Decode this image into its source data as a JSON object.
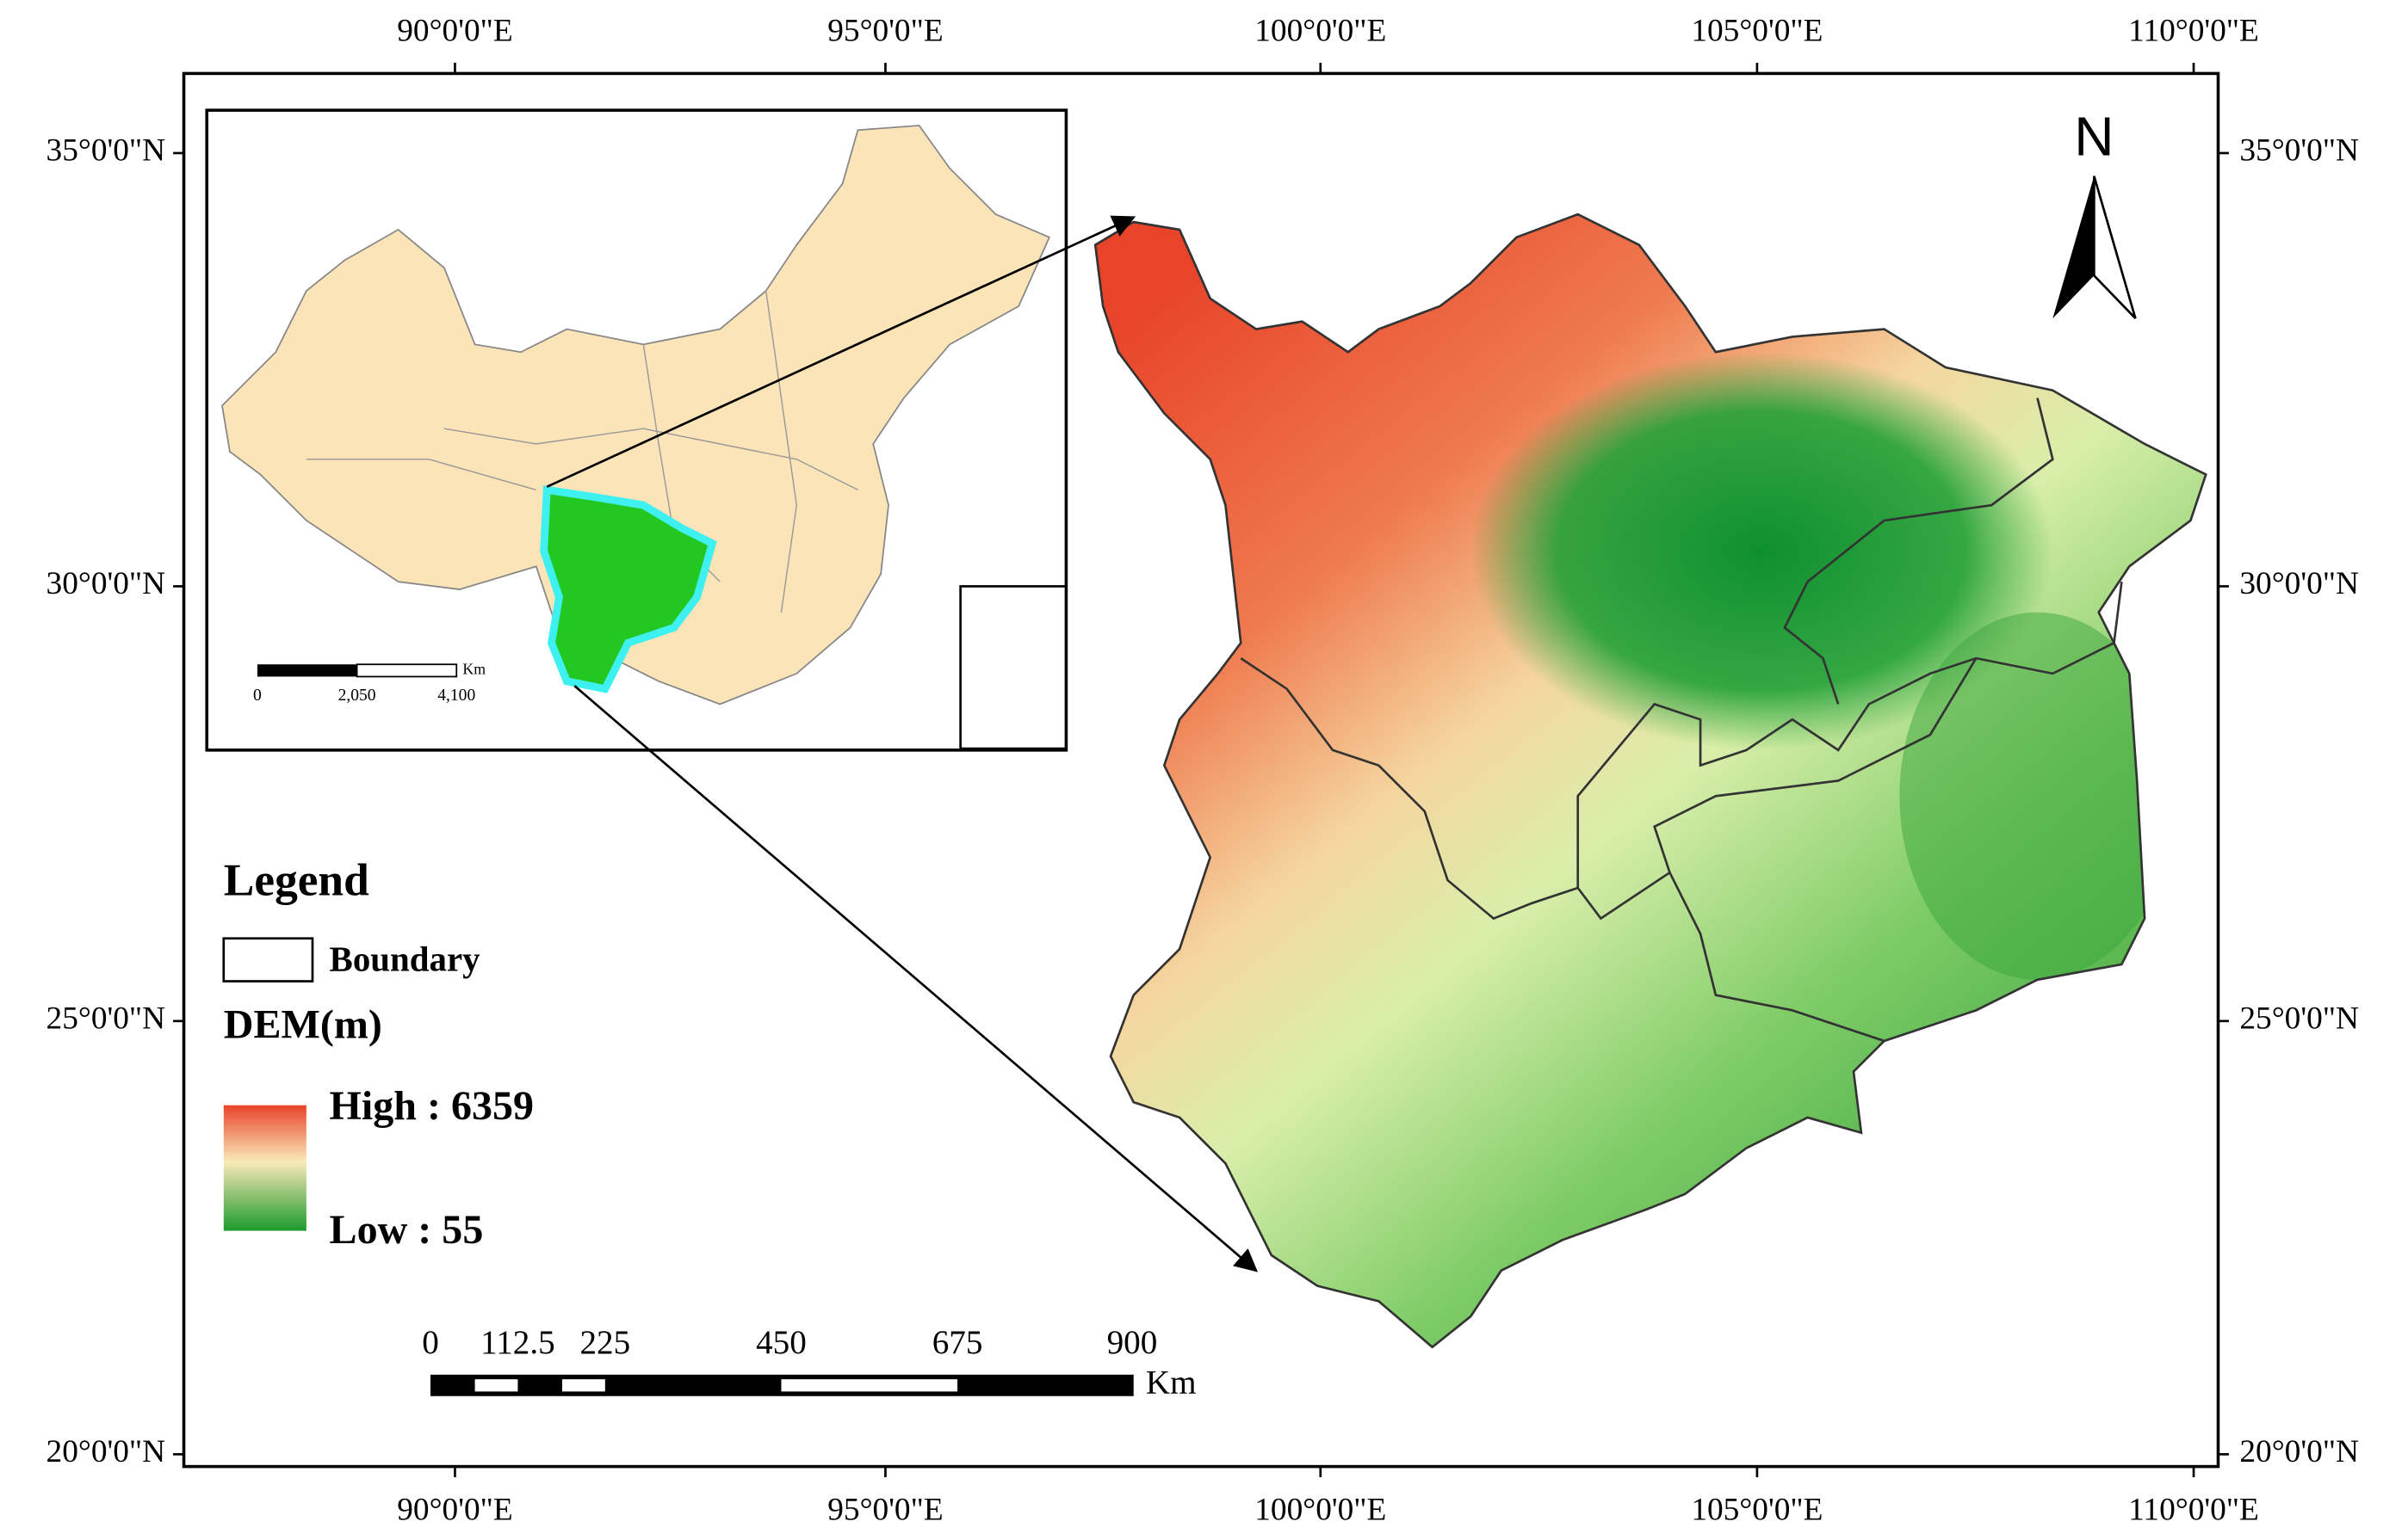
{
  "map": {
    "longitude_labels": [
      "90°0'0\"E",
      "95°0'0\"E",
      "100°0'0\"E",
      "105°0'0\"E",
      "110°0'0\"E"
    ],
    "latitude_labels": [
      "35°0'0\"N",
      "30°0'0\"N",
      "25°0'0\"N",
      "20°0'0\"N"
    ],
    "north_label": "N",
    "legend": {
      "title": "Legend",
      "boundary": "Boundary",
      "dem_title": "DEM(m)",
      "high": "High : 6359",
      "low": "Low : 55"
    },
    "scale_bar": {
      "labels": [
        "0",
        "112.5",
        "225",
        "450",
        "675",
        "900"
      ],
      "unit": "Km"
    },
    "inset": {
      "scale_labels": [
        "0",
        "2,050",
        "4,100"
      ],
      "unit": "Km"
    }
  }
}
